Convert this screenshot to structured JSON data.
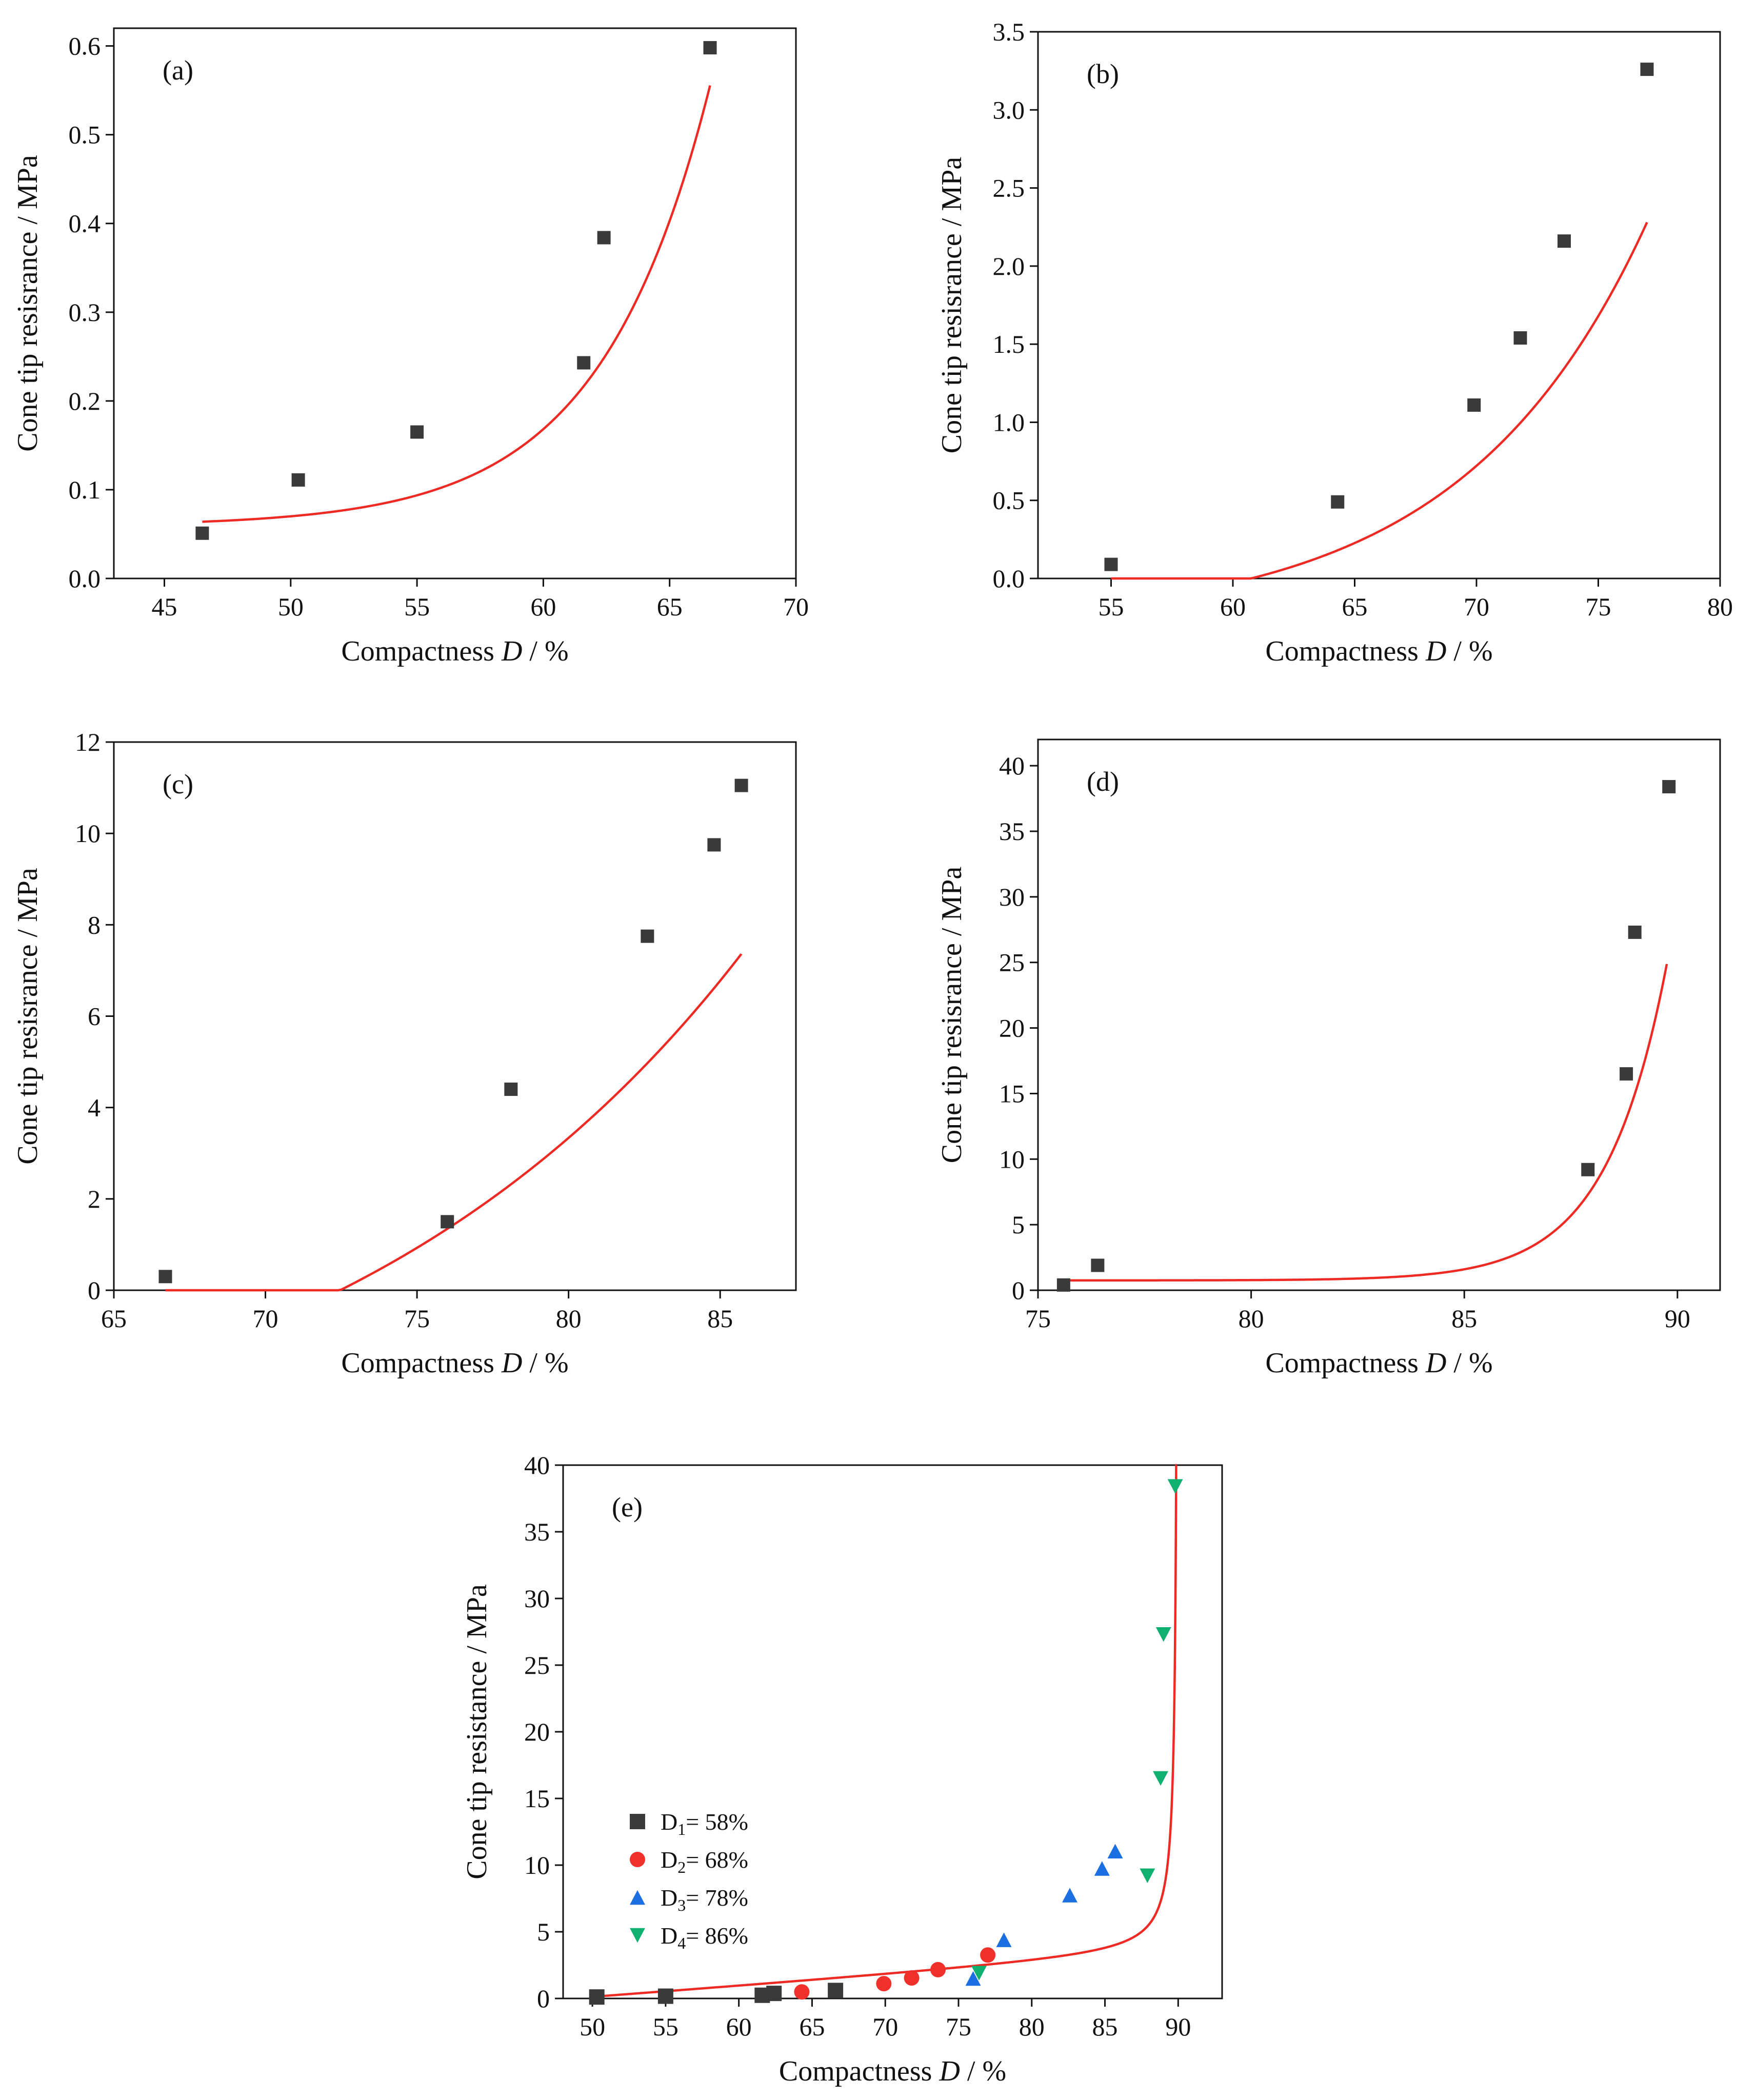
{
  "figure": {
    "colors": {
      "fit": "#ee2a24",
      "axis": "#111111",
      "D1": "#3a3a3a",
      "D2": "#f0302a",
      "D3": "#1c6fe0",
      "D4": "#10b070"
    }
  },
  "chart_data": [
    {
      "id": "a",
      "type": "scatter",
      "label": "(a)",
      "xlabel_main": "Compactness ",
      "xlabel_var": "D",
      "xlabel_unit": " / %",
      "ylabel": "Cone tip resisrance / MPa",
      "xlim": [
        43,
        70
      ],
      "ylim": [
        0,
        0.62
      ],
      "xticks": [
        45,
        50,
        55,
        60,
        65,
        70
      ],
      "yticks": [
        0.0,
        0.1,
        0.2,
        0.3,
        0.4,
        0.5,
        0.6
      ],
      "ydecimals": 1,
      "points": [
        [
          46.5,
          0.051
        ],
        [
          50.3,
          0.111
        ],
        [
          55.0,
          0.165
        ],
        [
          61.6,
          0.243
        ],
        [
          62.4,
          0.384
        ],
        [
          66.6,
          0.598
        ]
      ],
      "fit": {
        "model": "y0+A*exp(R0*x)",
        "y0": 0.059,
        "A": 1.15e-07,
        "R0": 0.2294,
        "x_range": [
          46.5,
          66.6
        ]
      }
    },
    {
      "id": "b",
      "type": "scatter",
      "label": "(b)",
      "xlabel_main": "Compactness ",
      "xlabel_var": "D",
      "xlabel_unit": " / %",
      "ylabel": "Cone tip resisrance / MPa",
      "xlim": [
        52,
        80
      ],
      "ylim": [
        0,
        3.5
      ],
      "xticks": [
        55,
        60,
        65,
        70,
        75,
        80
      ],
      "yticks": [
        0.0,
        0.5,
        1.0,
        1.5,
        2.0,
        2.5,
        3.0,
        3.5
      ],
      "ydecimals": 1,
      "points": [
        [
          55.0,
          0.09
        ],
        [
          64.3,
          0.49
        ],
        [
          69.9,
          1.11
        ],
        [
          71.8,
          1.54
        ],
        [
          73.6,
          2.16
        ],
        [
          77.0,
          3.26
        ]
      ],
      "fit": {
        "model": "y0+A*exp(R0*x)",
        "y0": -0.3,
        "A": 9.64e-05,
        "R0": 0.1324,
        "x_range": [
          55.0,
          77.0
        ]
      }
    },
    {
      "id": "c",
      "type": "scatter",
      "label": "(c)",
      "xlabel_main": "Compactness ",
      "xlabel_var": "D",
      "xlabel_unit": " / %",
      "ylabel": "Cone tip resisrance / MPa",
      "xlim": [
        65,
        87.5
      ],
      "ylim": [
        0,
        12
      ],
      "xticks": [
        65,
        70,
        75,
        80,
        85
      ],
      "yticks": [
        0,
        2,
        4,
        6,
        8,
        10,
        12
      ],
      "ydecimals": 0,
      "points": [
        [
          66.7,
          0.3
        ],
        [
          76.0,
          1.5
        ],
        [
          78.1,
          4.4
        ],
        [
          82.6,
          7.75
        ],
        [
          84.8,
          9.75
        ],
        [
          85.7,
          11.05
        ]
      ],
      "fit": {
        "model": "y0+A*exp(R0*x)",
        "y0": -4.68,
        "A": 0.0265,
        "R0": 0.0714,
        "x_range": [
          66.7,
          85.7
        ]
      }
    },
    {
      "id": "d",
      "type": "scatter",
      "label": "(d)",
      "xlabel_main": "Compactness ",
      "xlabel_var": "D",
      "xlabel_unit": " / %",
      "ylabel": "Cone tip resisrance / MPa",
      "xlim": [
        75,
        91
      ],
      "ylim": [
        0,
        42
      ],
      "xticks": [
        75,
        80,
        85,
        90
      ],
      "yticks": [
        0,
        5,
        10,
        15,
        20,
        25,
        30,
        35,
        40
      ],
      "ydecimals": 0,
      "points": [
        [
          75.6,
          0.4
        ],
        [
          76.4,
          1.9
        ],
        [
          87.9,
          9.2
        ],
        [
          88.8,
          16.5
        ],
        [
          89.0,
          27.3
        ],
        [
          89.8,
          38.4
        ]
      ],
      "fit": {
        "model": "y0+A*exp(R0*x)",
        "y0": 0.75,
        "A": 8e-27,
        "R0": 0.705,
        "x_range": [
          75.6,
          89.75
        ]
      }
    },
    {
      "id": "e",
      "type": "scatter",
      "label": "(e)",
      "xlabel_main": "Compactness ",
      "xlabel_var": "D",
      "xlabel_unit": " / %",
      "ylabel": "Cone tip resistance / MPa",
      "xlim": [
        48,
        93
      ],
      "ylim": [
        0,
        40
      ],
      "xticks": [
        50,
        55,
        60,
        65,
        70,
        75,
        80,
        85,
        90
      ],
      "yticks": [
        0,
        5,
        10,
        15,
        20,
        25,
        30,
        35,
        40
      ],
      "ydecimals": 0,
      "series": [
        {
          "name": "D1= 58%",
          "base": "D",
          "sub": "1",
          "rest": "= 58%",
          "marker": "square",
          "color": "#3a3a3a",
          "points": [
            [
              50.3,
              0.11
            ],
            [
              55.0,
              0.17
            ],
            [
              61.6,
              0.24
            ],
            [
              62.4,
              0.38
            ],
            [
              66.6,
              0.6
            ]
          ]
        },
        {
          "name": "D2= 68%",
          "base": "D",
          "sub": "2",
          "rest": "= 68%",
          "marker": "circle",
          "color": "#f0302a",
          "points": [
            [
              64.3,
              0.49
            ],
            [
              69.9,
              1.11
            ],
            [
              71.8,
              1.54
            ],
            [
              73.6,
              2.16
            ],
            [
              77.0,
              3.26
            ]
          ]
        },
        {
          "name": "D3= 78%",
          "base": "D",
          "sub": "3",
          "rest": "= 78%",
          "marker": "triangle-up",
          "color": "#1c6fe0",
          "points": [
            [
              76.0,
              1.5
            ],
            [
              78.1,
              4.4
            ],
            [
              82.6,
              7.75
            ],
            [
              84.8,
              9.75
            ],
            [
              85.7,
              11.05
            ]
          ]
        },
        {
          "name": "D4= 86%",
          "base": "D",
          "sub": "4",
          "rest": "= 86%",
          "marker": "triangle-down",
          "color": "#10b070",
          "points": [
            [
              76.4,
              1.9
            ],
            [
              87.9,
              9.2
            ],
            [
              88.8,
              16.5
            ],
            [
              89.0,
              27.3
            ],
            [
              89.8,
              38.4
            ]
          ]
        }
      ],
      "fit": {
        "model": "a+b*x+c/(x0-x)",
        "a": -4.0,
        "b": 0.08,
        "c": 5.0,
        "x0": 90.0,
        "x_range": [
          50.0,
          89.88
        ]
      }
    }
  ]
}
